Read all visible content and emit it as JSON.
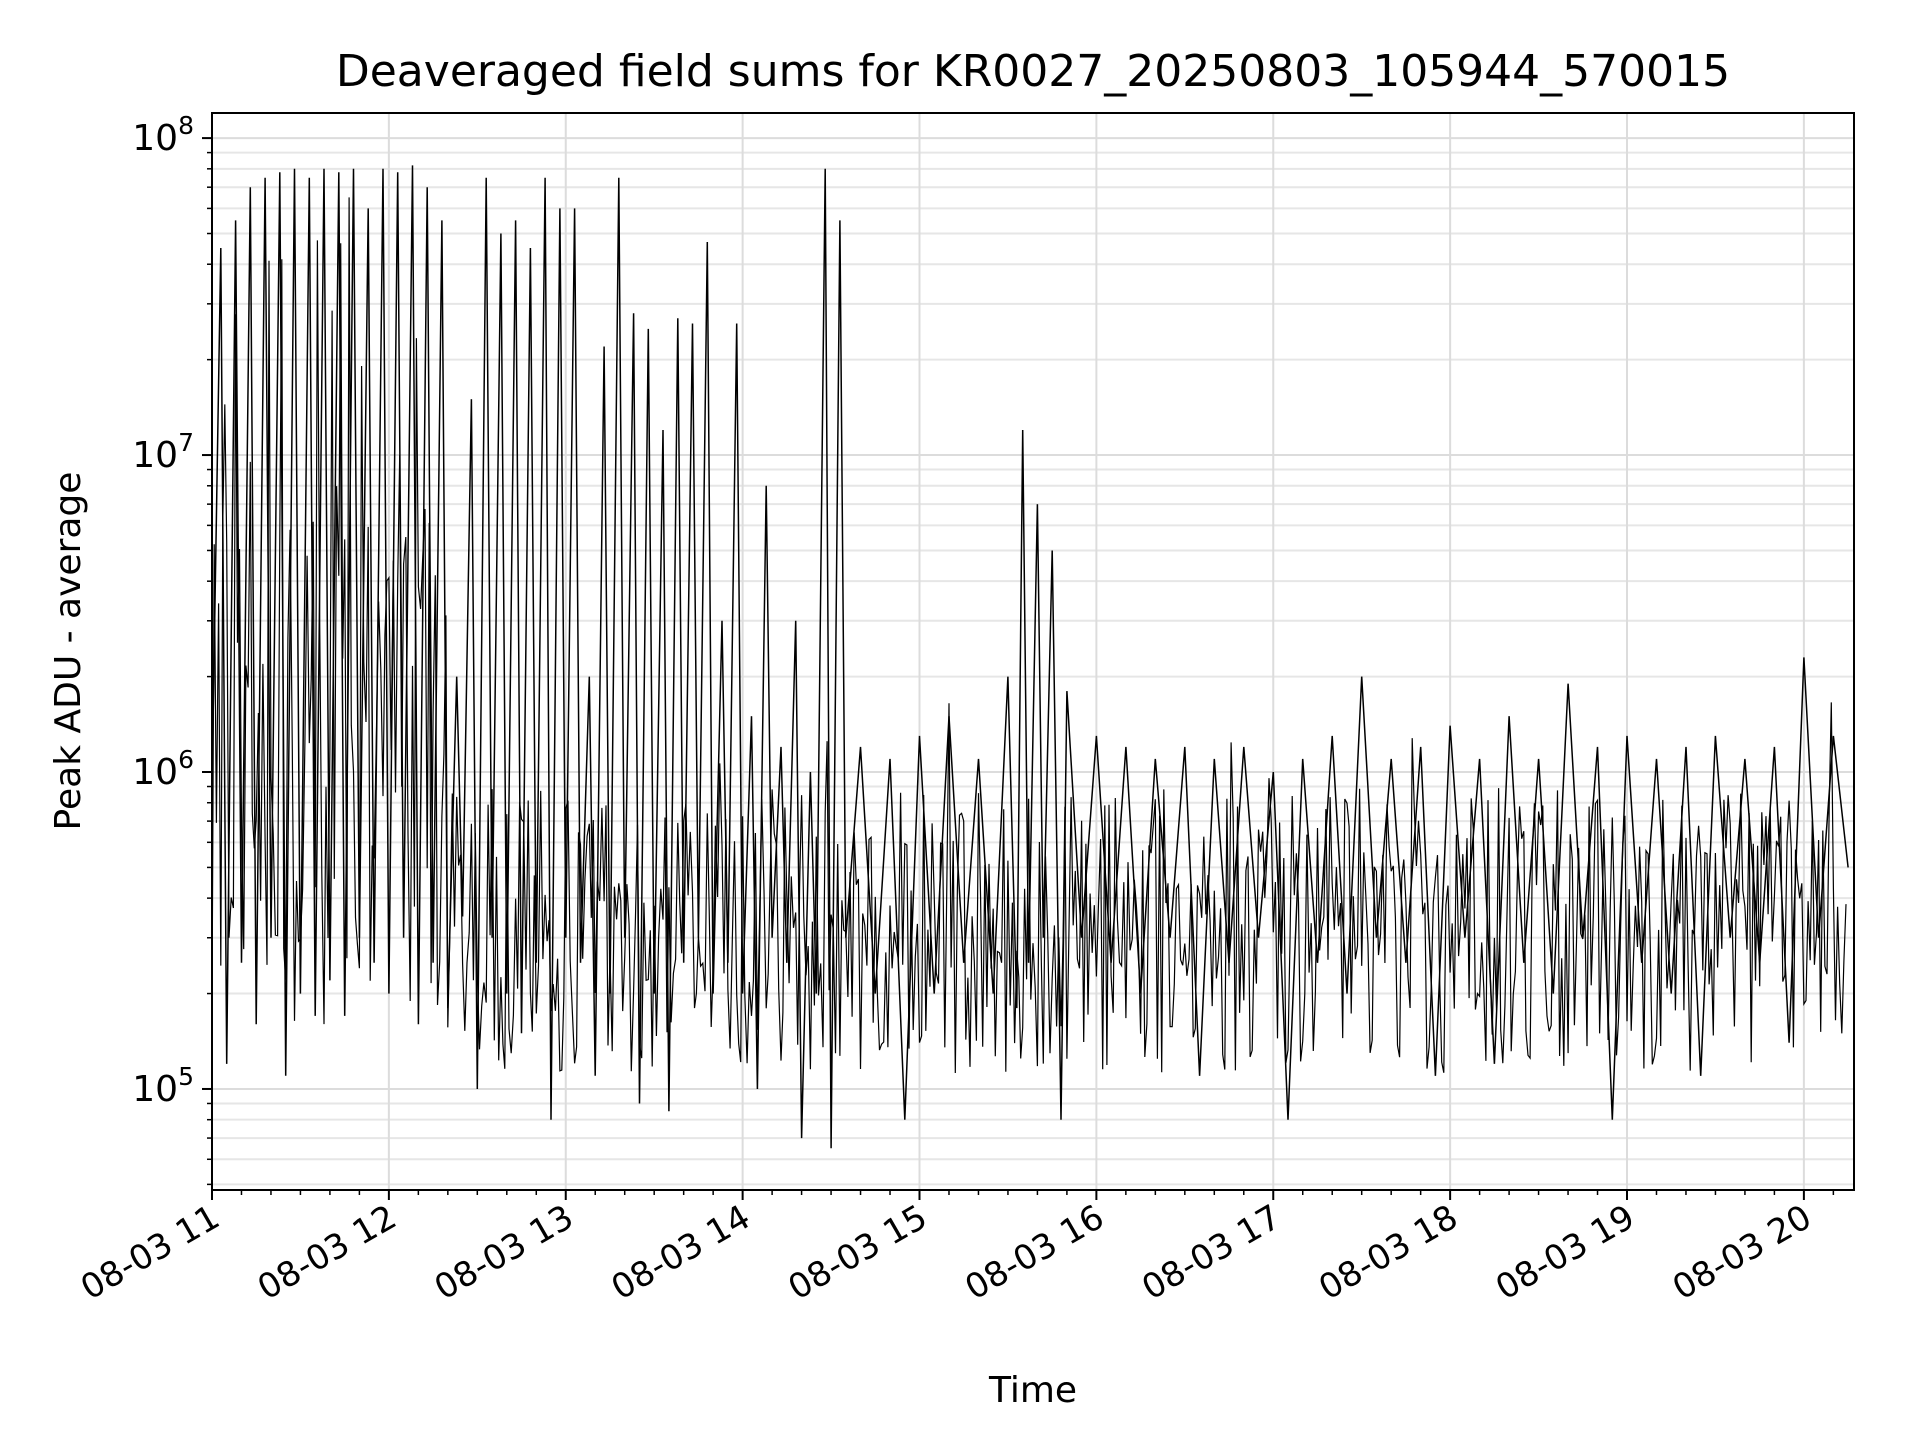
{
  "chart_data": {
    "type": "line",
    "title": "Deaveraged field sums for KR0027_20250803_105944_570015",
    "xlabel": "Time",
    "ylabel": "Peak ADU - average",
    "yscale": "log",
    "ylim": [
      48000,
      120000000
    ],
    "xlim": [
      "2025-08-03 11:00",
      "2025-08-03 20:17"
    ],
    "grid": "on (major and minor)",
    "line_color": "#000000",
    "x_ticks": [
      {
        "value": "2025-08-03 11:00",
        "label": "08-03 11"
      },
      {
        "value": "2025-08-03 12:00",
        "label": "08-03 12"
      },
      {
        "value": "2025-08-03 13:00",
        "label": "08-03 13"
      },
      {
        "value": "2025-08-03 14:00",
        "label": "08-03 14"
      },
      {
        "value": "2025-08-03 15:00",
        "label": "08-03 15"
      },
      {
        "value": "2025-08-03 16:00",
        "label": "08-03 16"
      },
      {
        "value": "2025-08-03 17:00",
        "label": "08-03 17"
      },
      {
        "value": "2025-08-03 18:00",
        "label": "08-03 18"
      },
      {
        "value": "2025-08-03 19:00",
        "label": "08-03 19"
      },
      {
        "value": "2025-08-03 20:00",
        "label": "08-03 20"
      }
    ],
    "y_ticks": [
      {
        "value": 100000,
        "base": "10",
        "exp": "5"
      },
      {
        "value": 1000000,
        "base": "10",
        "exp": "6"
      },
      {
        "value": 10000000,
        "base": "10",
        "exp": "7"
      },
      {
        "value": 100000000,
        "base": "10",
        "exp": "8"
      }
    ],
    "series": [
      {
        "points": [
          [
            "2025-08-03 11:00",
            900000
          ],
          [
            "2025-08-03 11:03",
            45000000
          ],
          [
            "2025-08-03 11:05",
            120000
          ],
          [
            "2025-08-03 11:08",
            55000000
          ],
          [
            "2025-08-03 11:10",
            250000
          ],
          [
            "2025-08-03 11:13",
            70000000
          ],
          [
            "2025-08-03 11:15",
            160000
          ],
          [
            "2025-08-03 11:18",
            75000000
          ],
          [
            "2025-08-03 11:20",
            300000
          ],
          [
            "2025-08-03 11:23",
            78000000
          ],
          [
            "2025-08-03 11:25",
            110000
          ],
          [
            "2025-08-03 11:28",
            80000000
          ],
          [
            "2025-08-03 11:30",
            200000
          ],
          [
            "2025-08-03 11:33",
            75000000
          ],
          [
            "2025-08-03 11:35",
            170000
          ],
          [
            "2025-08-03 11:38",
            80000000
          ],
          [
            "2025-08-03 11:40",
            220000
          ],
          [
            "2025-08-03 11:43",
            78000000
          ],
          [
            "2025-08-03 11:45",
            170000
          ],
          [
            "2025-08-03 11:48",
            80000000
          ],
          [
            "2025-08-03 11:50",
            300000
          ],
          [
            "2025-08-03 11:53",
            60000000
          ],
          [
            "2025-08-03 11:55",
            250000
          ],
          [
            "2025-08-03 11:58",
            80000000
          ],
          [
            "2025-08-03 12:00",
            200000
          ],
          [
            "2025-08-03 12:03",
            78000000
          ],
          [
            "2025-08-03 12:05",
            300000
          ],
          [
            "2025-08-03 12:08",
            82000000
          ],
          [
            "2025-08-03 12:10",
            160000
          ],
          [
            "2025-08-03 12:13",
            70000000
          ],
          [
            "2025-08-03 12:15",
            250000
          ],
          [
            "2025-08-03 12:18",
            55000000
          ],
          [
            "2025-08-03 12:20",
            180000
          ],
          [
            "2025-08-03 12:23",
            2000000
          ],
          [
            "2025-08-03 12:25",
            350000
          ],
          [
            "2025-08-03 12:28",
            15000000
          ],
          [
            "2025-08-03 12:30",
            100000
          ],
          [
            "2025-08-03 12:33",
            75000000
          ],
          [
            "2025-08-03 12:35",
            300000
          ],
          [
            "2025-08-03 12:38",
            50000000
          ],
          [
            "2025-08-03 12:40",
            200000
          ],
          [
            "2025-08-03 12:43",
            55000000
          ],
          [
            "2025-08-03 12:45",
            150000
          ],
          [
            "2025-08-03 12:48",
            45000000
          ],
          [
            "2025-08-03 12:50",
            250000
          ],
          [
            "2025-08-03 12:53",
            75000000
          ],
          [
            "2025-08-03 12:55",
            80000
          ],
          [
            "2025-08-03 12:58",
            60000000
          ],
          [
            "2025-08-03 13:00",
            300000
          ],
          [
            "2025-08-03 13:03",
            60000000
          ],
          [
            "2025-08-03 13:05",
            250000
          ],
          [
            "2025-08-03 13:08",
            2000000
          ],
          [
            "2025-08-03 13:10",
            110000
          ],
          [
            "2025-08-03 13:13",
            22000000
          ],
          [
            "2025-08-03 13:15",
            200000
          ],
          [
            "2025-08-03 13:18",
            75000000
          ],
          [
            "2025-08-03 13:20",
            300000
          ],
          [
            "2025-08-03 13:23",
            28000000
          ],
          [
            "2025-08-03 13:25",
            90000
          ],
          [
            "2025-08-03 13:28",
            25000000
          ],
          [
            "2025-08-03 13:30",
            200000
          ],
          [
            "2025-08-03 13:33",
            12000000
          ],
          [
            "2025-08-03 13:35",
            85000
          ],
          [
            "2025-08-03 13:38",
            27000000
          ],
          [
            "2025-08-03 13:40",
            250000
          ],
          [
            "2025-08-03 13:43",
            26000000
          ],
          [
            "2025-08-03 13:45",
            300000
          ],
          [
            "2025-08-03 13:48",
            47000000
          ],
          [
            "2025-08-03 13:50",
            200000
          ],
          [
            "2025-08-03 13:53",
            3000000
          ],
          [
            "2025-08-03 13:55",
            250000
          ],
          [
            "2025-08-03 13:58",
            26000000
          ],
          [
            "2025-08-03 14:00",
            200000
          ],
          [
            "2025-08-03 14:03",
            1500000
          ],
          [
            "2025-08-03 14:05",
            100000
          ],
          [
            "2025-08-03 14:08",
            8000000
          ],
          [
            "2025-08-03 14:10",
            300000
          ],
          [
            "2025-08-03 14:13",
            1200000
          ],
          [
            "2025-08-03 14:15",
            250000
          ],
          [
            "2025-08-03 14:18",
            3000000
          ],
          [
            "2025-08-03 14:20",
            70000
          ],
          [
            "2025-08-03 14:23",
            1000000
          ],
          [
            "2025-08-03 14:25",
            200000
          ],
          [
            "2025-08-03 14:28",
            80000000
          ],
          [
            "2025-08-03 14:30",
            65000
          ],
          [
            "2025-08-03 14:33",
            55000000
          ],
          [
            "2025-08-03 14:35",
            300000
          ],
          [
            "2025-08-03 14:40",
            1200000
          ],
          [
            "2025-08-03 14:45",
            200000
          ],
          [
            "2025-08-03 14:50",
            1100000
          ],
          [
            "2025-08-03 14:55",
            80000
          ],
          [
            "2025-08-03 15:00",
            1300000
          ],
          [
            "2025-08-03 15:05",
            200000
          ],
          [
            "2025-08-03 15:10",
            1500000
          ],
          [
            "2025-08-03 15:15",
            250000
          ],
          [
            "2025-08-03 15:20",
            1100000
          ],
          [
            "2025-08-03 15:25",
            200000
          ],
          [
            "2025-08-03 15:30",
            2000000
          ],
          [
            "2025-08-03 15:33",
            180000
          ],
          [
            "2025-08-03 15:35",
            12000000
          ],
          [
            "2025-08-03 15:37",
            250000
          ],
          [
            "2025-08-03 15:40",
            7000000
          ],
          [
            "2025-08-03 15:42",
            300000
          ],
          [
            "2025-08-03 15:45",
            5000000
          ],
          [
            "2025-08-03 15:48",
            80000
          ],
          [
            "2025-08-03 15:50",
            1800000
          ],
          [
            "2025-08-03 15:55",
            300000
          ],
          [
            "2025-08-03 16:00",
            1300000
          ],
          [
            "2025-08-03 16:05",
            250000
          ],
          [
            "2025-08-03 16:10",
            1200000
          ],
          [
            "2025-08-03 16:15",
            200000
          ],
          [
            "2025-08-03 16:20",
            1100000
          ],
          [
            "2025-08-03 16:25",
            300000
          ],
          [
            "2025-08-03 16:30",
            1200000
          ],
          [
            "2025-08-03 16:35",
            110000
          ],
          [
            "2025-08-03 16:40",
            1100000
          ],
          [
            "2025-08-03 16:45",
            250000
          ],
          [
            "2025-08-03 16:50",
            1200000
          ],
          [
            "2025-08-03 16:55",
            300000
          ],
          [
            "2025-08-03 17:00",
            1000000
          ],
          [
            "2025-08-03 17:05",
            80000
          ],
          [
            "2025-08-03 17:10",
            1100000
          ],
          [
            "2025-08-03 17:15",
            250000
          ],
          [
            "2025-08-03 17:20",
            1300000
          ],
          [
            "2025-08-03 17:25",
            200000
          ],
          [
            "2025-08-03 17:30",
            2000000
          ],
          [
            "2025-08-03 17:35",
            300000
          ],
          [
            "2025-08-03 17:40",
            1100000
          ],
          [
            "2025-08-03 17:45",
            250000
          ],
          [
            "2025-08-03 17:50",
            1200000
          ],
          [
            "2025-08-03 17:55",
            110000
          ],
          [
            "2025-08-03 18:00",
            1400000
          ],
          [
            "2025-08-03 18:05",
            300000
          ],
          [
            "2025-08-03 18:10",
            1100000
          ],
          [
            "2025-08-03 18:15",
            120000
          ],
          [
            "2025-08-03 18:20",
            1500000
          ],
          [
            "2025-08-03 18:25",
            250000
          ],
          [
            "2025-08-03 18:30",
            1100000
          ],
          [
            "2025-08-03 18:35",
            200000
          ],
          [
            "2025-08-03 18:40",
            1900000
          ],
          [
            "2025-08-03 18:45",
            300000
          ],
          [
            "2025-08-03 18:50",
            1200000
          ],
          [
            "2025-08-03 18:55",
            80000
          ],
          [
            "2025-08-03 19:00",
            1300000
          ],
          [
            "2025-08-03 19:05",
            250000
          ],
          [
            "2025-08-03 19:10",
            1100000
          ],
          [
            "2025-08-03 19:15",
            200000
          ],
          [
            "2025-08-03 19:20",
            1200000
          ],
          [
            "2025-08-03 19:25",
            110000
          ],
          [
            "2025-08-03 19:30",
            1300000
          ],
          [
            "2025-08-03 19:35",
            300000
          ],
          [
            "2025-08-03 19:40",
            1100000
          ],
          [
            "2025-08-03 19:45",
            250000
          ],
          [
            "2025-08-03 19:50",
            1200000
          ],
          [
            "2025-08-03 19:55",
            140000
          ],
          [
            "2025-08-03 20:00",
            2300000
          ],
          [
            "2025-08-03 20:05",
            300000
          ],
          [
            "2025-08-03 20:10",
            1300000
          ],
          [
            "2025-08-03 20:15",
            500000
          ]
        ]
      }
    ]
  }
}
